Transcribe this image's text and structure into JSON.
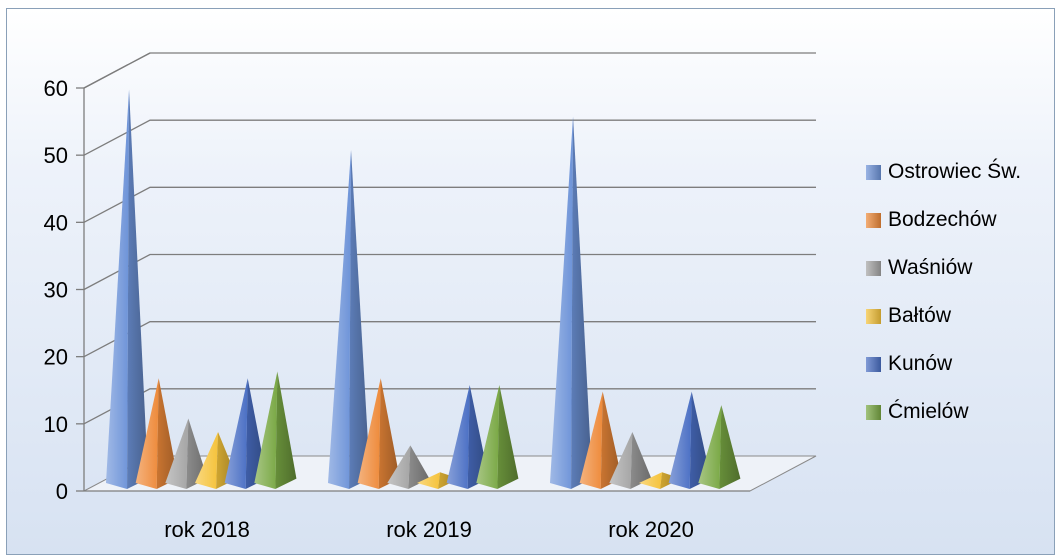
{
  "chart_data": {
    "type": "bar",
    "shape": "pyramid-3d",
    "title": "",
    "xlabel": "",
    "ylabel": "",
    "ylim": [
      0,
      60
    ],
    "yticks": [
      "0",
      "10",
      "20",
      "30",
      "40",
      "50",
      "60"
    ],
    "grid": true,
    "legend_position": "right",
    "categories": [
      "rok 2018",
      "rok 2019",
      "rok 2020"
    ],
    "series": [
      {
        "name": "Ostrowiec Św.",
        "color": "#6d93d8",
        "values": [
          58,
          49,
          54
        ]
      },
      {
        "name": "Bodzechów",
        "color": "#ee8a3a",
        "values": [
          15,
          15,
          13
        ]
      },
      {
        "name": "Waśniów",
        "color": "#a5a5a5",
        "values": [
          9,
          5,
          7
        ]
      },
      {
        "name": "Bałtów",
        "color": "#f5c33b",
        "values": [
          7,
          1,
          1
        ]
      },
      {
        "name": "Kunów",
        "color": "#4a6fc4",
        "values": [
          15,
          14,
          13
        ]
      },
      {
        "name": "Ćmielów",
        "color": "#79a844",
        "values": [
          16,
          14,
          11
        ]
      }
    ]
  }
}
